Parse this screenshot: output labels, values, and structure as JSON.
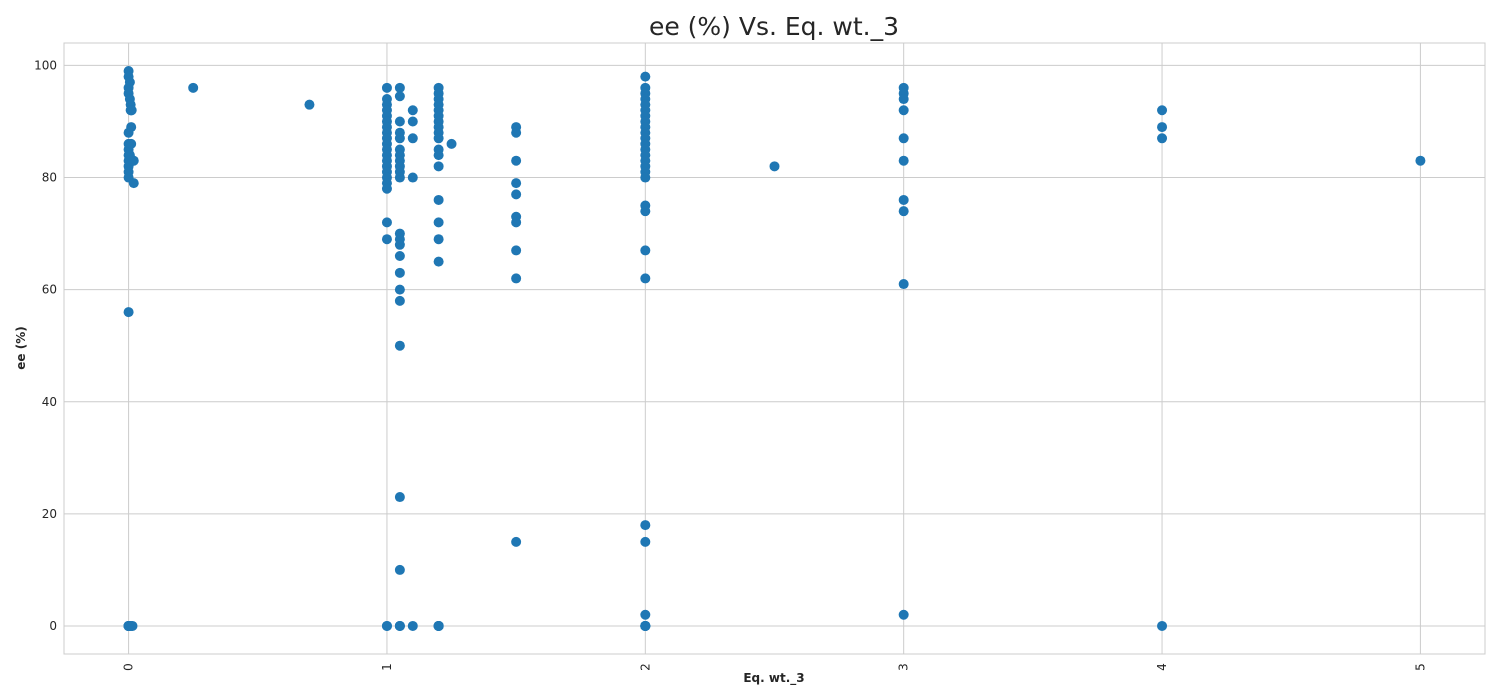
{
  "chart_data": {
    "type": "scatter",
    "title": "ee (%) Vs. Eq. wt._3",
    "xlabel": "Eq. wt._3",
    "ylabel": "ee (%)",
    "xlim": [
      -0.25,
      5.25
    ],
    "ylim": [
      -5,
      104
    ],
    "xticks": [
      0,
      1,
      2,
      3,
      4,
      5
    ],
    "xtick_labels": [
      "0",
      "1",
      "2",
      "3",
      "4",
      "5"
    ],
    "yticks": [
      0,
      20,
      40,
      60,
      80,
      100
    ],
    "ytick_labels": [
      "0",
      "20",
      "40",
      "60",
      "80",
      "100"
    ],
    "grid": true,
    "marker_color": "#1f77b4",
    "x": [
      0,
      0,
      0,
      0,
      0,
      0,
      0,
      0,
      0,
      0,
      0,
      0,
      0,
      0,
      0,
      0,
      0,
      0,
      0,
      0,
      0.005,
      0.005,
      0.008,
      0.008,
      0.01,
      0.01,
      0.012,
      0.015,
      0.015,
      0.02,
      0.02,
      0.005,
      0.01,
      0.015,
      0.005,
      0.01,
      0.25,
      0.7,
      1,
      1,
      1,
      1,
      1,
      1,
      1,
      1,
      1,
      1,
      1,
      1,
      1,
      1,
      1,
      1,
      1,
      1,
      1,
      1,
      1,
      1,
      1.05,
      1.05,
      1.05,
      1.05,
      1.05,
      1.05,
      1.05,
      1.05,
      1.05,
      1.05,
      1.05,
      1.05,
      1.05,
      1.05,
      1.05,
      1.05,
      1.05,
      1.05,
      1.05,
      1.05,
      1.05,
      1.05,
      1.05,
      1.05,
      1.1,
      1.1,
      1.1,
      1.1,
      1.1,
      1.2,
      1.2,
      1.2,
      1.2,
      1.2,
      1.2,
      1.2,
      1.2,
      1.2,
      1.2,
      1.2,
      1.2,
      1.2,
      1.2,
      1.2,
      1.2,
      1.2,
      1.2,
      1.2,
      1.2,
      1.2,
      1.2,
      1.2,
      1.25,
      1.5,
      1.5,
      1.5,
      1.5,
      1.5,
      1.5,
      1.5,
      1.5,
      1.5,
      1.5,
      2,
      2,
      2,
      2,
      2,
      2,
      2,
      2,
      2,
      2,
      2,
      2,
      2,
      2,
      2,
      2,
      2,
      2,
      2,
      2,
      2,
      2,
      2,
      2,
      2,
      2,
      2,
      2,
      2,
      2,
      2,
      2,
      2.5,
      3,
      3,
      3,
      3,
      3,
      3,
      3,
      3,
      3,
      3,
      4,
      4,
      4,
      4,
      5
    ],
    "y": [
      99,
      98,
      96,
      95,
      88,
      86,
      85,
      84,
      83,
      82,
      81,
      80,
      56,
      0,
      0,
      0,
      0,
      0,
      0,
      0,
      97,
      94,
      93,
      92,
      92,
      89,
      92,
      83,
      83,
      79,
      83,
      0,
      0,
      0,
      84,
      86,
      96,
      93,
      96,
      94,
      93,
      92,
      91,
      90,
      89,
      88,
      87,
      86,
      85,
      84,
      83,
      82,
      81,
      80,
      79,
      78,
      72,
      69,
      0,
      0,
      96,
      94.5,
      90,
      88,
      87,
      85,
      84,
      83,
      82,
      81,
      80,
      70,
      69,
      68,
      66,
      63,
      60,
      58,
      50,
      23,
      10,
      0,
      0,
      0,
      92,
      90,
      87,
      80,
      0,
      96,
      95,
      94,
      93,
      92,
      91,
      90,
      89,
      88,
      87,
      85,
      84,
      82,
      76,
      72,
      69,
      65,
      0,
      0,
      0,
      0,
      0,
      0,
      86,
      89,
      88,
      83,
      79,
      77,
      73,
      72,
      67,
      62,
      15,
      98,
      96,
      95,
      94,
      93,
      92,
      91,
      90,
      89,
      88,
      87,
      86,
      85,
      84,
      83,
      82,
      81,
      80,
      75,
      74,
      67,
      62,
      18,
      15,
      2,
      0,
      0,
      0,
      0,
      0,
      0,
      0,
      82,
      96,
      95,
      94,
      92,
      87,
      83,
      76,
      74,
      61,
      2,
      92,
      89,
      87,
      0,
      83
    ]
  }
}
